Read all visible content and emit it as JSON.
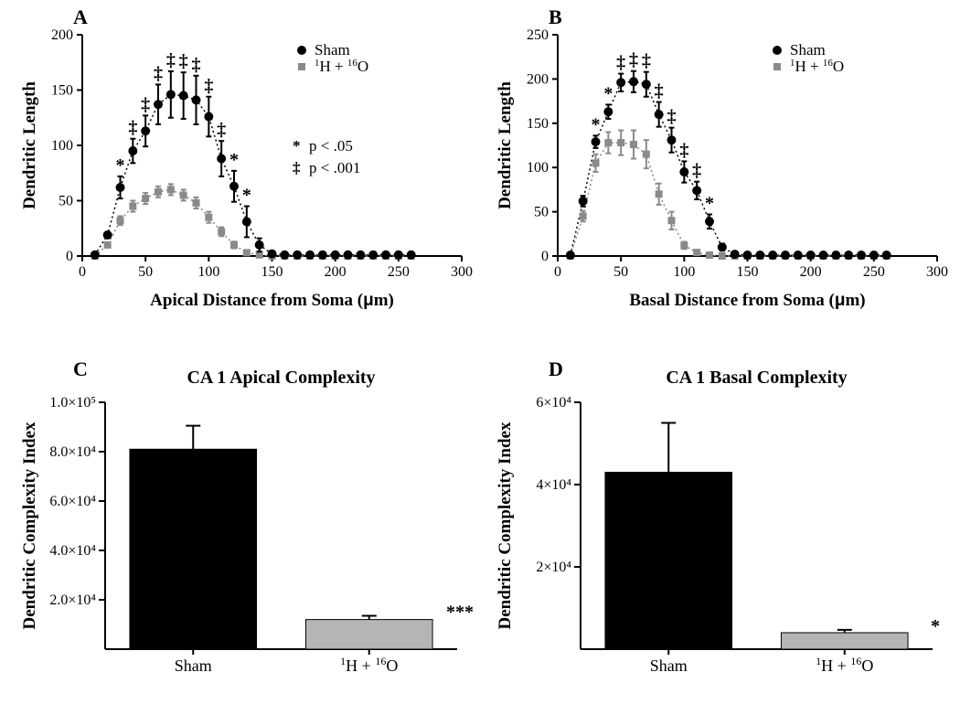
{
  "palette": {
    "sham_color": "#000000",
    "treat_color": "#8a8a8a",
    "treat_fill": "#b5b5b5",
    "background": "#ffffff"
  },
  "fontsizes": {
    "panel_label": 22,
    "axis_title": 19,
    "tick": 16,
    "chart_title": 20,
    "legend": 17
  },
  "panelA": {
    "label": "A",
    "type": "scatter-line",
    "xlabel": "Apical Distance from Soma (μm)",
    "ylabel": "Dendritic Length",
    "xlim": [
      0,
      300
    ],
    "xtick_step": 50,
    "ylim": [
      0,
      200
    ],
    "ytick_step": 50,
    "legend": [
      {
        "label": "Sham",
        "marker": "circle",
        "color": "#000000"
      },
      {
        "label_html": "<sup>1</sup>H + <sup>16</sup>O",
        "marker": "square",
        "color": "#8a8a8a"
      }
    ],
    "sig_legend": [
      {
        "symbol": "*",
        "text": "p < .05"
      },
      {
        "symbol": "‡",
        "text": "p < .001"
      }
    ],
    "x": [
      10,
      20,
      30,
      40,
      50,
      60,
      70,
      80,
      90,
      100,
      110,
      120,
      130,
      140,
      150,
      160,
      170,
      180,
      190,
      200,
      210,
      220,
      230,
      240,
      250,
      260
    ],
    "sham": {
      "y": [
        1,
        19,
        62,
        95,
        113,
        137,
        146,
        145,
        141,
        126,
        88,
        63,
        31,
        10,
        2,
        1,
        1,
        1,
        1,
        1,
        1,
        1,
        1,
        1,
        1,
        1
      ],
      "err": [
        0,
        0,
        10,
        11,
        14,
        18,
        21,
        21,
        22,
        18,
        16,
        14,
        14,
        6,
        2,
        0,
        0,
        0,
        0,
        0,
        0,
        0,
        0,
        0,
        0,
        0
      ],
      "sig": [
        "",
        "",
        "*",
        "‡",
        "‡",
        "‡",
        "‡",
        "‡",
        "‡",
        "‡",
        "‡",
        "*",
        "*",
        "",
        "",
        "",
        "",
        "",
        "",
        "",
        "",
        "",
        "",
        "",
        "",
        ""
      ]
    },
    "treat": {
      "y": [
        0,
        10,
        32,
        45,
        52,
        58,
        60,
        55,
        48,
        35,
        22,
        10,
        3,
        1,
        0,
        0,
        0,
        0,
        0,
        0,
        0,
        0,
        0,
        0,
        0,
        0
      ],
      "err": [
        0,
        0,
        4,
        5,
        5,
        5,
        5,
        5,
        5,
        5,
        4,
        3,
        2,
        0,
        0,
        0,
        0,
        0,
        0,
        0,
        0,
        0,
        0,
        0,
        0,
        0
      ]
    }
  },
  "panelB": {
    "label": "B",
    "type": "scatter-line",
    "xlabel": "Basal Distance from Soma (μm)",
    "ylabel": "Dendritic Length",
    "xlim": [
      0,
      300
    ],
    "xtick_step": 50,
    "ylim": [
      0,
      250
    ],
    "ytick_step": 50,
    "legend": [
      {
        "label": "Sham",
        "marker": "circle",
        "color": "#000000"
      },
      {
        "label_html": "<sup>1</sup>H + <sup>16</sup>O",
        "marker": "square",
        "color": "#8a8a8a"
      }
    ],
    "x": [
      10,
      20,
      30,
      40,
      50,
      60,
      70,
      80,
      90,
      100,
      110,
      120,
      130,
      140,
      150,
      160,
      170,
      180,
      190,
      200,
      210,
      220,
      230,
      240,
      250,
      260
    ],
    "sham": {
      "y": [
        1,
        62,
        129,
        163,
        196,
        197,
        194,
        160,
        131,
        95,
        74,
        39,
        10,
        2,
        1,
        1,
        1,
        1,
        1,
        1,
        1,
        1,
        1,
        1,
        1,
        1
      ],
      "err": [
        0,
        6,
        7,
        8,
        10,
        12,
        14,
        14,
        14,
        12,
        10,
        8,
        4,
        2,
        0,
        0,
        0,
        0,
        0,
        0,
        0,
        0,
        0,
        0,
        0,
        0
      ],
      "sig": [
        "",
        "",
        "*",
        "*",
        "‡",
        "‡",
        "‡",
        "‡",
        "‡",
        "‡",
        "‡",
        "*",
        "",
        "",
        "",
        "",
        "",
        "",
        "",
        "",
        "",
        "",
        "",
        "",
        "",
        ""
      ]
    },
    "treat": {
      "y": [
        0,
        45,
        105,
        128,
        128,
        126,
        115,
        70,
        40,
        12,
        4,
        1,
        0,
        0,
        0,
        0,
        0,
        0,
        0,
        0,
        0,
        0,
        0,
        0,
        0,
        0
      ],
      "err": [
        0,
        6,
        10,
        12,
        14,
        16,
        16,
        12,
        10,
        4,
        2,
        0,
        0,
        0,
        0,
        0,
        0,
        0,
        0,
        0,
        0,
        0,
        0,
        0,
        0,
        0
      ]
    }
  },
  "panelC": {
    "label": "C",
    "type": "bar",
    "title": "CA 1 Apical Complexity",
    "ylabel": "Dendritic Complexity Index",
    "ylim": [
      0,
      100000
    ],
    "ytick_step": 20000,
    "ytick_labels": [
      "2.0×10⁴",
      "4.0×10⁴",
      "6.0×10⁴",
      "8.0×10⁴",
      "1.0×10⁵"
    ],
    "categories": [
      "Sham",
      "¹H + ¹⁶O"
    ],
    "values": [
      81000,
      12000
    ],
    "errors": [
      9500,
      1500
    ],
    "colors": [
      "#000000",
      "#b5b5b5"
    ],
    "sig_marks": [
      "",
      "***"
    ]
  },
  "panelD": {
    "label": "D",
    "type": "bar",
    "title": "CA 1 Basal Complexity",
    "ylabel": "Dendritic Complexity Index",
    "ylim": [
      0,
      60000
    ],
    "ytick_step": 20000,
    "ytick_labels": [
      "2×10⁴",
      "4×10⁴",
      "6×10⁴"
    ],
    "categories": [
      "Sham",
      "¹H + ¹⁶O"
    ],
    "values": [
      43000,
      4000
    ],
    "errors": [
      12000,
      700
    ],
    "colors": [
      "#000000",
      "#b5b5b5"
    ],
    "sig_marks": [
      "",
      "*"
    ]
  }
}
